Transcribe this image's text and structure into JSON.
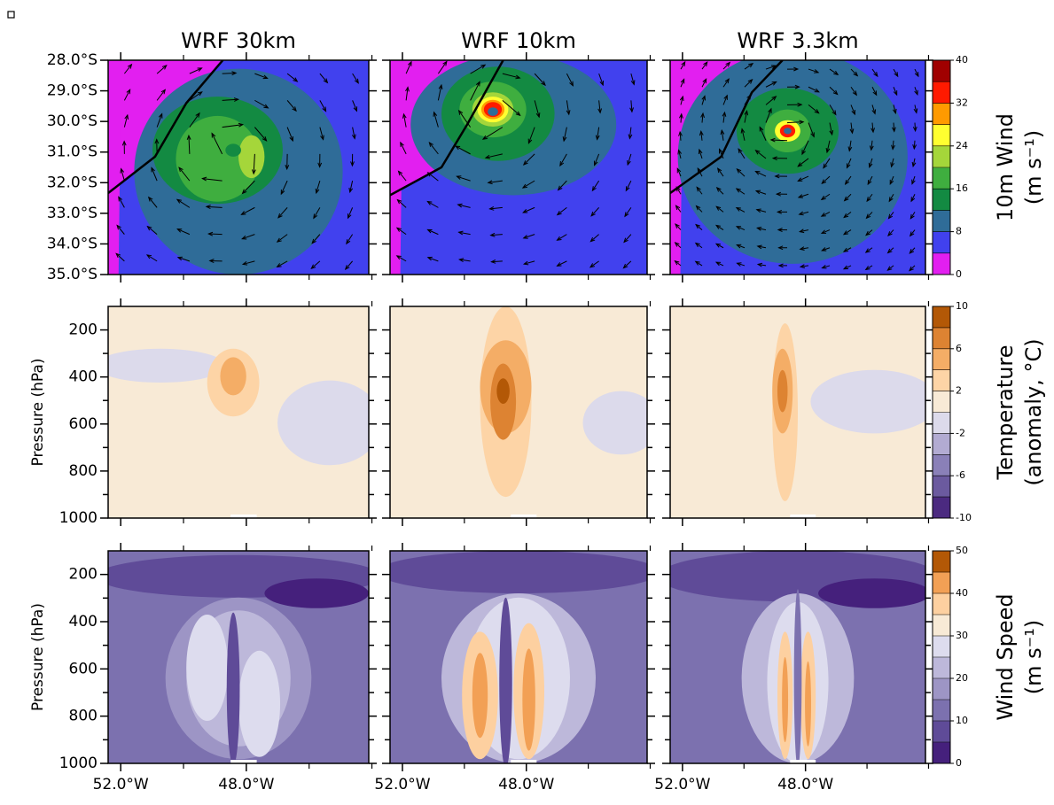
{
  "figure": {
    "columns": [
      "WRF 30km",
      "WRF 10km",
      "WRF 3.3km"
    ],
    "xlim": [
      -52.4,
      -44.1
    ],
    "xticks": [
      {
        "value": -52,
        "label": "52.0°W"
      },
      {
        "value": -48,
        "label": "48.0°W"
      }
    ],
    "xminor": [
      -50,
      -46,
      -44
    ],
    "rows": [
      {
        "type": "map",
        "ylim": [
          -35,
          -28
        ],
        "yticks": [
          {
            "value": -28,
            "label": "28.0°S"
          },
          {
            "value": -29,
            "label": "29.0°S"
          },
          {
            "value": -30,
            "label": "30.0°S"
          },
          {
            "value": -31,
            "label": "31.0°S"
          },
          {
            "value": -32,
            "label": "32.0°S"
          },
          {
            "value": -33,
            "label": "33.0°S"
          },
          {
            "value": -34,
            "label": "34.0°S"
          },
          {
            "value": -35,
            "label": "35.0°S"
          }
        ],
        "colorbar": {
          "title": "10m Wind",
          "units": "(m s⁻¹)",
          "lim": [
            0,
            40
          ],
          "ticks": [
            0,
            8,
            16,
            24,
            32,
            40
          ],
          "colors": [
            "#e21ff0",
            "#4141ee",
            "#2f6c98",
            "#138a42",
            "#3fae3f",
            "#a5d63a",
            "#ffff30",
            "#ff9a00",
            "#ff1a00",
            "#a00000"
          ]
        }
      },
      {
        "type": "section",
        "ylabel": "Pressure (hPa)",
        "ylim": [
          1000,
          100
        ],
        "yticks": [
          200,
          400,
          600,
          800,
          1000
        ],
        "yminor": [
          300,
          500,
          700,
          900
        ],
        "colorbar": {
          "title": "Temperature",
          "units": "(anomaly, °C)",
          "lim": [
            -10,
            10
          ],
          "ticks": [
            -10,
            -6,
            -2,
            2,
            6,
            10
          ],
          "colors": [
            "#4b2a80",
            "#6b5a9f",
            "#8a80b8",
            "#b2abd2",
            "#dcdaeb",
            "#f8ead6",
            "#fdd4a6",
            "#f4ad66",
            "#dd8332",
            "#b35806"
          ]
        }
      },
      {
        "type": "section",
        "ylabel": "Pressure (hPa)",
        "ylim": [
          1000,
          100
        ],
        "yticks": [
          200,
          400,
          600,
          800,
          1000
        ],
        "yminor": [
          300,
          500,
          700,
          900
        ],
        "colorbar": {
          "title": "Wind Speed",
          "units": "(m s⁻¹)",
          "lim": [
            0,
            50
          ],
          "ticks": [
            0,
            10,
            20,
            30,
            40,
            50
          ],
          "colors": [
            "#45207c",
            "#5f4b98",
            "#7c71af",
            "#9d95c5",
            "#bdb8da",
            "#dddcee",
            "#f8ead6",
            "#fdd0a0",
            "#f2a055",
            "#b35806"
          ]
        }
      }
    ]
  }
}
